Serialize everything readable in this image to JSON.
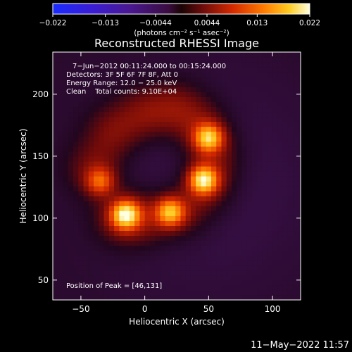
{
  "chart_data": {
    "type": "heatmap",
    "title": "Reconstructed RHESSI Image",
    "xlabel": "Heliocentric X (arcsec)",
    "ylabel": "Heliocentric Y (arcsec)",
    "xlim": [
      -72,
      122
    ],
    "ylim": [
      34,
      234
    ],
    "x_ticks": [
      -50,
      0,
      50,
      100
    ],
    "y_ticks": [
      50,
      100,
      150,
      200
    ],
    "colorbar": {
      "ticks": [
        -0.022,
        -0.013,
        -0.0044,
        0.0044,
        0.013,
        0.022
      ],
      "tick_labels": [
        "−0.022",
        "−0.013",
        "−0.0044",
        "0.0044",
        "0.013",
        "0.022"
      ],
      "unit_label": "(photons cm⁻² s⁻¹ asec⁻²)",
      "range": [
        -0.022,
        0.022
      ]
    },
    "annotations": [
      "7−Jun−2012 00:11:24.000 to 00:15:24.000",
      "Detectors: 3F 5F 6F 7F 8F, Att 0",
      "Energy Range: 12.0 − 25.0 keV",
      "Clean    Total counts: 9.10E+04"
    ],
    "peak_text": "Position of Peak = [46,131]",
    "peak_position": [
      46,
      131
    ],
    "sources": [
      {
        "x": -15,
        "y": 103,
        "value": 0.022
      },
      {
        "x": 50,
        "y": 165,
        "value": 0.019
      },
      {
        "x": 46,
        "y": 131,
        "value": 0.022
      },
      {
        "x": 20,
        "y": 105,
        "value": 0.018
      },
      {
        "x": -35,
        "y": 130,
        "value": 0.012
      }
    ],
    "background_value": -0.001,
    "grid": false
  },
  "footer_timestamp": "11−May−2022 11:57",
  "colors": {
    "background": "#000000",
    "text": "#ffffff"
  }
}
